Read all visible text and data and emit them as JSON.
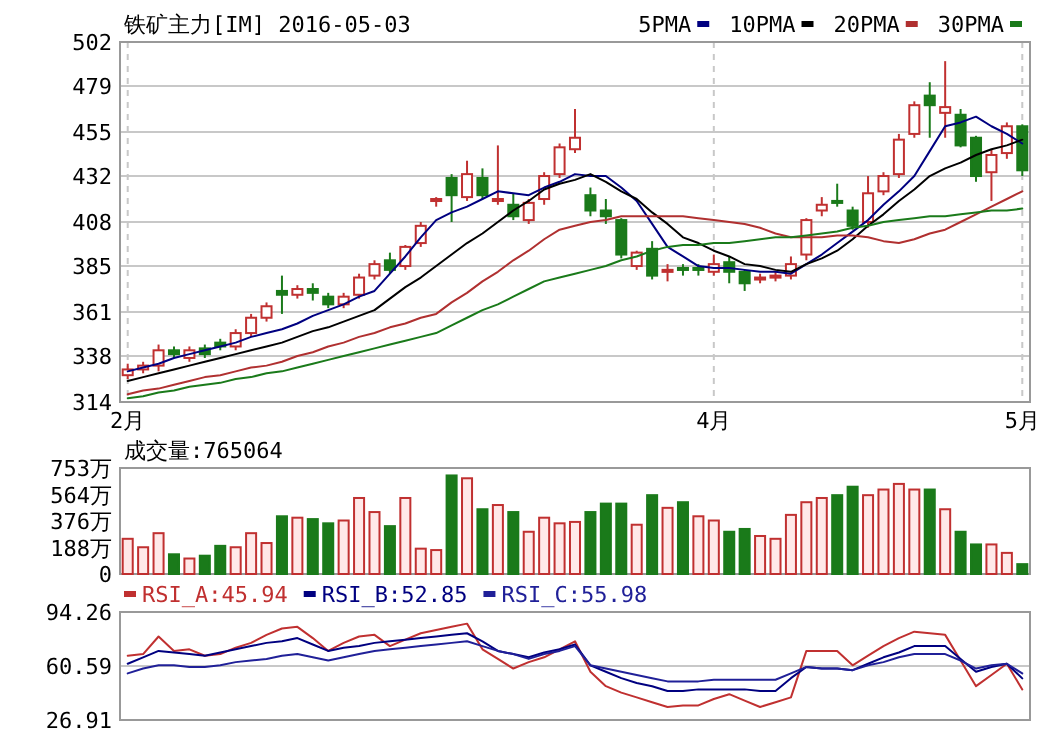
{
  "chart_data": [
    {
      "type": "candlestick",
      "title": "铁矿主力[IM] 2016-05-03",
      "legend": "top right",
      "grid": true,
      "categories": [
        "2月",
        null,
        null,
        null,
        null,
        null,
        null,
        null,
        null,
        null,
        null,
        null,
        null,
        null,
        null,
        null,
        null,
        null,
        null,
        null,
        null,
        null,
        null,
        null,
        null,
        null,
        null,
        null,
        null,
        null,
        null,
        null,
        null,
        null,
        null,
        null,
        null,
        null,
        "4月",
        null,
        null,
        null,
        null,
        null,
        null,
        null,
        null,
        null,
        null,
        null,
        null,
        null,
        null,
        null,
        null,
        null,
        null,
        null,
        "5月"
      ],
      "ohlc": [
        [
          328,
          334,
          326,
          331
        ],
        [
          331,
          335,
          329,
          333
        ],
        [
          333,
          344,
          330,
          341
        ],
        [
          341,
          343,
          337,
          339
        ],
        [
          337,
          343,
          335,
          341
        ],
        [
          342,
          344,
          337,
          339
        ],
        [
          345,
          347,
          341,
          343
        ],
        [
          343,
          352,
          341,
          350
        ],
        [
          350,
          360,
          348,
          358
        ],
        [
          358,
          366,
          356,
          364
        ],
        [
          372,
          380,
          360,
          370
        ],
        [
          370,
          375,
          368,
          373
        ],
        [
          373,
          376,
          367,
          371
        ],
        [
          369,
          371,
          363,
          365
        ],
        [
          365,
          371,
          363,
          369
        ],
        [
          370,
          381,
          368,
          379
        ],
        [
          380,
          388,
          378,
          386
        ],
        [
          388,
          392,
          381,
          383
        ],
        [
          385,
          396,
          383,
          395
        ],
        [
          397,
          408,
          395,
          406
        ],
        [
          419,
          421,
          416,
          420
        ],
        [
          431,
          433,
          408,
          422
        ],
        [
          421,
          440,
          419,
          433
        ],
        [
          431,
          436,
          420,
          422
        ],
        [
          419,
          448,
          417,
          420
        ],
        [
          417,
          423,
          409,
          411
        ],
        [
          409,
          420,
          407,
          418
        ],
        [
          420,
          434,
          417,
          432
        ],
        [
          433,
          449,
          431,
          447
        ],
        [
          446,
          467,
          444,
          452
        ],
        [
          422,
          426,
          411,
          414
        ],
        [
          414,
          420,
          407,
          411
        ],
        [
          409,
          410,
          389,
          391
        ],
        [
          385,
          393,
          383,
          392
        ],
        [
          394,
          398,
          378,
          380
        ],
        [
          382,
          386,
          377,
          383
        ],
        [
          384,
          386,
          380,
          383
        ],
        [
          384,
          386,
          380,
          383
        ],
        [
          382,
          391,
          380,
          386
        ],
        [
          387,
          390,
          376,
          382
        ],
        [
          382,
          383,
          372,
          376
        ],
        [
          378,
          381,
          376,
          379
        ],
        [
          379,
          382,
          377,
          380
        ],
        [
          380,
          390,
          378,
          386
        ],
        [
          391,
          410,
          388,
          409
        ],
        [
          414,
          421,
          411,
          417
        ],
        [
          419,
          428,
          416,
          418
        ],
        [
          414,
          416,
          404,
          406
        ],
        [
          408,
          432,
          405,
          423
        ],
        [
          424,
          434,
          422,
          432
        ],
        [
          433,
          454,
          431,
          451
        ],
        [
          454,
          471,
          452,
          469
        ],
        [
          474,
          481,
          452,
          469
        ],
        [
          465,
          492,
          452,
          468
        ],
        [
          464,
          467,
          447,
          448
        ],
        [
          452,
          453,
          429,
          432
        ],
        [
          434,
          446,
          419,
          443
        ],
        [
          444,
          460,
          441,
          458
        ],
        [
          458,
          459,
          432,
          435
        ]
      ],
      "ylim": [
        314,
        502
      ],
      "yticks": [
        314,
        338,
        361,
        385,
        408,
        432,
        455,
        479,
        502
      ],
      "series": [
        {
          "name": "5PMA",
          "type": "line",
          "color": "#000080",
          "values": [
            330,
            332,
            334,
            337,
            339,
            341,
            343,
            345,
            348,
            350,
            352,
            355,
            359,
            362,
            365,
            369,
            372,
            381,
            390,
            400,
            409,
            413,
            416,
            420,
            424,
            423,
            422,
            426,
            429,
            433,
            432,
            432,
            426,
            419,
            407,
            395,
            390,
            385,
            384,
            384,
            383,
            382,
            382,
            381,
            386,
            391,
            397,
            403,
            409,
            417,
            424,
            432,
            445,
            458,
            460,
            463,
            458,
            454,
            449
          ]
        },
        {
          "name": "10PMA",
          "type": "line",
          "color": "#000000",
          "values": [
            325,
            327,
            329,
            331,
            333,
            335,
            337,
            339,
            341,
            343,
            345,
            348,
            351,
            353,
            356,
            359,
            362,
            368,
            374,
            379,
            385,
            391,
            397,
            402,
            408,
            414,
            419,
            425,
            428,
            430,
            433,
            429,
            424,
            420,
            413,
            407,
            400,
            397,
            393,
            390,
            386,
            385,
            383,
            382,
            386,
            389,
            393,
            399,
            406,
            412,
            419,
            425,
            432,
            436,
            439,
            443,
            446,
            448,
            451
          ]
        },
        {
          "name": "20PMA",
          "type": "line",
          "color": "#b03030",
          "values": [
            318,
            320,
            321,
            323,
            325,
            327,
            328,
            330,
            332,
            333,
            335,
            338,
            340,
            343,
            345,
            348,
            350,
            353,
            355,
            358,
            360,
            366,
            371,
            377,
            382,
            388,
            393,
            399,
            404,
            406,
            408,
            409,
            411,
            411,
            411,
            411,
            411,
            410,
            409,
            408,
            407,
            405,
            402,
            400,
            400,
            400,
            401,
            401,
            400,
            398,
            397,
            399,
            402,
            404,
            408,
            412,
            416,
            420,
            424
          ]
        },
        {
          "name": "30PMA",
          "type": "line",
          "color": "#1a7a1a",
          "values": [
            316,
            317,
            319,
            320,
            322,
            323,
            324,
            326,
            327,
            329,
            330,
            332,
            334,
            336,
            338,
            340,
            342,
            344,
            346,
            348,
            350,
            354,
            358,
            362,
            365,
            369,
            373,
            377,
            379,
            381,
            383,
            385,
            388,
            390,
            393,
            395,
            396,
            396,
            397,
            397,
            398,
            399,
            400,
            400,
            401,
            402,
            403,
            405,
            406,
            408,
            409,
            410,
            411,
            411,
            412,
            413,
            414,
            414,
            415
          ]
        }
      ]
    },
    {
      "type": "bar",
      "title": "成交量:765064",
      "tick_labels": "y",
      "categories": [
        null,
        null,
        null,
        null,
        null,
        null,
        null,
        null,
        null,
        null,
        null,
        null,
        null,
        null,
        null,
        null,
        null,
        null,
        null,
        null,
        null,
        null,
        null,
        null,
        null,
        null,
        null,
        null,
        null,
        null,
        null,
        null,
        null,
        null,
        null,
        null,
        null,
        null,
        null,
        null,
        null,
        null,
        null,
        null,
        null,
        null,
        null,
        null,
        null,
        null,
        null,
        null,
        null,
        null,
        null,
        null,
        null,
        null,
        null
      ],
      "values": [
        250,
        190,
        290,
        140,
        110,
        130,
        200,
        190,
        290,
        220,
        410,
        400,
        390,
        360,
        380,
        540,
        440,
        340,
        540,
        180,
        170,
        700,
        680,
        460,
        490,
        440,
        300,
        400,
        360,
        370,
        440,
        500,
        500,
        350,
        560,
        470,
        510,
        410,
        380,
        300,
        320,
        270,
        250,
        420,
        510,
        540,
        560,
        620,
        560,
        600,
        640,
        600,
        600,
        460,
        300,
        210,
        210,
        150,
        70
      ],
      "colors": [
        "#c03030",
        "#c03030",
        "#c03030",
        "#1a7a1a",
        "#c03030",
        "#1a7a1a",
        "#1a7a1a",
        "#c03030",
        "#c03030",
        "#c03030",
        "#1a7a1a",
        "#c03030",
        "#1a7a1a",
        "#1a7a1a",
        "#c03030",
        "#c03030",
        "#c03030",
        "#1a7a1a",
        "#c03030",
        "#c03030",
        "#c03030",
        "#1a7a1a",
        "#c03030",
        "#1a7a1a",
        "#c03030",
        "#1a7a1a",
        "#c03030",
        "#c03030",
        "#c03030",
        "#c03030",
        "#1a7a1a",
        "#1a7a1a",
        "#1a7a1a",
        "#c03030",
        "#1a7a1a",
        "#c03030",
        "#1a7a1a",
        "#c03030",
        "#c03030",
        "#1a7a1a",
        "#1a7a1a",
        "#c03030",
        "#c03030",
        "#c03030",
        "#c03030",
        "#c03030",
        "#1a7a1a",
        "#1a7a1a",
        "#c03030",
        "#c03030",
        "#c03030",
        "#c03030",
        "#1a7a1a",
        "#c03030",
        "#1a7a1a",
        "#1a7a1a",
        "#c03030",
        "#c03030",
        "#1a7a1a"
      ],
      "ylim": [
        0,
        753
      ],
      "yticks": [
        {
          "value": 0,
          "label": "0"
        },
        {
          "value": 188,
          "label": "188万"
        },
        {
          "value": 376,
          "label": "376万"
        },
        {
          "value": 564,
          "label": "564万"
        },
        {
          "value": 753,
          "label": "753万"
        }
      ]
    },
    {
      "type": "line",
      "legend": "top left",
      "grid": "y",
      "tick_labels": "y",
      "categories": [
        null,
        null,
        null,
        null,
        null,
        null,
        null,
        null,
        null,
        null,
        null,
        null,
        null,
        null,
        null,
        null,
        null,
        null,
        null,
        null,
        null,
        null,
        null,
        null,
        null,
        null,
        null,
        null,
        null,
        null,
        null,
        null,
        null,
        null,
        null,
        null,
        null,
        null,
        null,
        null,
        null,
        null,
        null,
        null,
        null,
        null,
        null,
        null,
        null,
        null,
        null,
        null,
        null,
        null,
        null,
        null,
        null,
        null,
        null
      ],
      "ylim": [
        26.91,
        94.26
      ],
      "yticks": [
        26.91,
        60.59,
        94.26
      ],
      "series": [
        {
          "name": "RSI_A:45.94",
          "color": "#c03030",
          "values": [
            67,
            68,
            79,
            70,
            71,
            67,
            68,
            72,
            75,
            80,
            84,
            85,
            78,
            70,
            75,
            79,
            80,
            73,
            77,
            81,
            83,
            85,
            87,
            71,
            65,
            59,
            63,
            66,
            71,
            76,
            57,
            48,
            44,
            41,
            38,
            35,
            36,
            36,
            40,
            43,
            39,
            35,
            38,
            41,
            70,
            70,
            70,
            61,
            67,
            73,
            78,
            82,
            81,
            80,
            64,
            48,
            55,
            62,
            45.94
          ]
        },
        {
          "name": "RSI_B:52.85",
          "color": "#000080",
          "values": [
            62,
            66,
            70,
            69,
            68,
            67,
            69,
            71,
            73,
            75,
            76,
            78,
            74,
            70,
            72,
            73,
            75,
            76,
            77,
            78,
            79,
            80,
            81,
            76,
            70,
            68,
            66,
            69,
            71,
            74,
            61,
            57,
            53,
            50,
            48,
            45,
            45,
            46,
            46,
            46,
            46,
            45,
            45,
            53,
            60,
            59,
            59,
            58,
            62,
            66,
            69,
            73,
            73,
            73,
            65,
            57,
            60,
            62,
            52.85
          ]
        },
        {
          "name": "RSI_C:55.98",
          "color": "#202098",
          "values": [
            56,
            59,
            61,
            61,
            60,
            60,
            61,
            63,
            64,
            65,
            67,
            68,
            66,
            64,
            66,
            68,
            70,
            71,
            72,
            73,
            74,
            75,
            76,
            73,
            70,
            68,
            65,
            68,
            70,
            73,
            61,
            59,
            57,
            55,
            53,
            51,
            51,
            51,
            52,
            52,
            52,
            52,
            52,
            56,
            60,
            59,
            59,
            58,
            61,
            63,
            66,
            68,
            68,
            68,
            64,
            59,
            61,
            62,
            55.98
          ]
        }
      ]
    }
  ]
}
